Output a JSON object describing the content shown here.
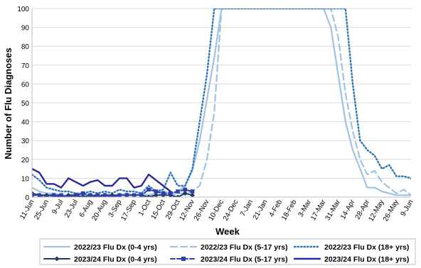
{
  "chart_data": {
    "type": "line",
    "title": "",
    "xlabel": "Week",
    "ylabel": "Number of Flu Diagnoses",
    "ylim": [
      0,
      100
    ],
    "y_ticks": [
      0,
      10,
      20,
      30,
      40,
      50,
      60,
      70,
      80,
      90,
      100
    ],
    "grid": "horizontal",
    "legend_position": "bottom",
    "x_labels": [
      "11-Jun",
      "25-Jun",
      "9-Jul",
      "23-Jul",
      "6-Aug",
      "20-Aug",
      "3-Sep",
      "17-Sep",
      "1-Oct",
      "15-Oct",
      "29-Oct",
      "12-Nov",
      "26-Nov",
      "10-Dec",
      "24-Dec",
      "7-Jan",
      "21-Jan",
      "4-Feb",
      "18-Feb",
      "3-Mar",
      "17-Mar",
      "31-Mar",
      "14-Apr",
      "28-Apr",
      "12-May",
      "26-May",
      "9-Jun"
    ],
    "series": [
      {
        "name": "2022/23 Flu Dx (0-4 yrs)",
        "color": "#9DC3E6",
        "style": "solid",
        "values": [
          5,
          3,
          2,
          2,
          1,
          1,
          1,
          1,
          1,
          1,
          1,
          1,
          1,
          2,
          1,
          2,
          1,
          2,
          3,
          2,
          3,
          6,
          14,
          30,
          52,
          74,
          100,
          100,
          100,
          100,
          100,
          100,
          100,
          100,
          100,
          100,
          100,
          100,
          100,
          100,
          100,
          90,
          65,
          40,
          25,
          15,
          5,
          5,
          3,
          2,
          1,
          1,
          1,
          3,
          4,
          6,
          3,
          1,
          1,
          1,
          1,
          1,
          1,
          1,
          1,
          1,
          1,
          1,
          1,
          2
        ]
      },
      {
        "name": "2022/23 Flu Dx (5-17 yrs)",
        "color": "#9DC3E6",
        "style": "dash",
        "values": [
          2,
          1,
          1,
          1,
          0,
          1,
          0,
          1,
          1,
          1,
          1,
          0,
          1,
          1,
          1,
          1,
          1,
          1,
          2,
          1,
          2,
          2,
          3,
          6,
          20,
          45,
          100,
          100,
          100,
          100,
          100,
          100,
          100,
          100,
          100,
          100,
          100,
          100,
          100,
          100,
          100,
          100,
          85,
          55,
          35,
          20,
          12,
          14,
          8,
          5,
          2,
          4,
          1,
          1,
          1,
          1,
          2,
          5,
          3,
          3,
          5,
          2,
          1,
          1,
          2,
          1,
          1,
          1,
          1,
          1
        ]
      },
      {
        "name": "2022/23 Flu Dx (18+ yrs)",
        "color": "#2E75B6",
        "style": "dot",
        "values": [
          12,
          9,
          5,
          4,
          3,
          3,
          2,
          2,
          3,
          2,
          3,
          2,
          4,
          3,
          3,
          2,
          6,
          3,
          4,
          13,
          6,
          6,
          15,
          40,
          65,
          100,
          100,
          100,
          100,
          100,
          100,
          100,
          100,
          100,
          100,
          100,
          100,
          100,
          100,
          100,
          100,
          100,
          100,
          100,
          60,
          30,
          25,
          22,
          15,
          17,
          11,
          11,
          10,
          6,
          15,
          16,
          18,
          22,
          10,
          10,
          10,
          9,
          10,
          9,
          10,
          18
        ]
      },
      {
        "name": "2023/24 Flu Dx (0-4 yrs)",
        "color": "#203864",
        "style": "solid-diamond",
        "values": [
          2,
          1,
          1,
          1,
          0,
          1,
          1,
          0,
          1,
          0,
          1,
          1,
          1,
          1,
          1,
          1,
          0,
          1,
          1,
          1,
          0,
          2,
          1
        ]
      },
      {
        "name": "2023/24 Flu Dx (5-17 yrs)",
        "color": "#2F3FA8",
        "style": "dash-square",
        "values": [
          1,
          1,
          0,
          1,
          1,
          0,
          1,
          2,
          1,
          1,
          1,
          0,
          1,
          1,
          1,
          1,
          4,
          3,
          2,
          2,
          3,
          4,
          3
        ]
      },
      {
        "name": "2023/24 Flu Dx (18+ yrs)",
        "color": "#2B2B96",
        "style": "solid-thick",
        "values": [
          15,
          13,
          7,
          7,
          5,
          10,
          8,
          6,
          8,
          9,
          6,
          6,
          10,
          10,
          5,
          6,
          12,
          9,
          6,
          3
        ]
      }
    ]
  }
}
